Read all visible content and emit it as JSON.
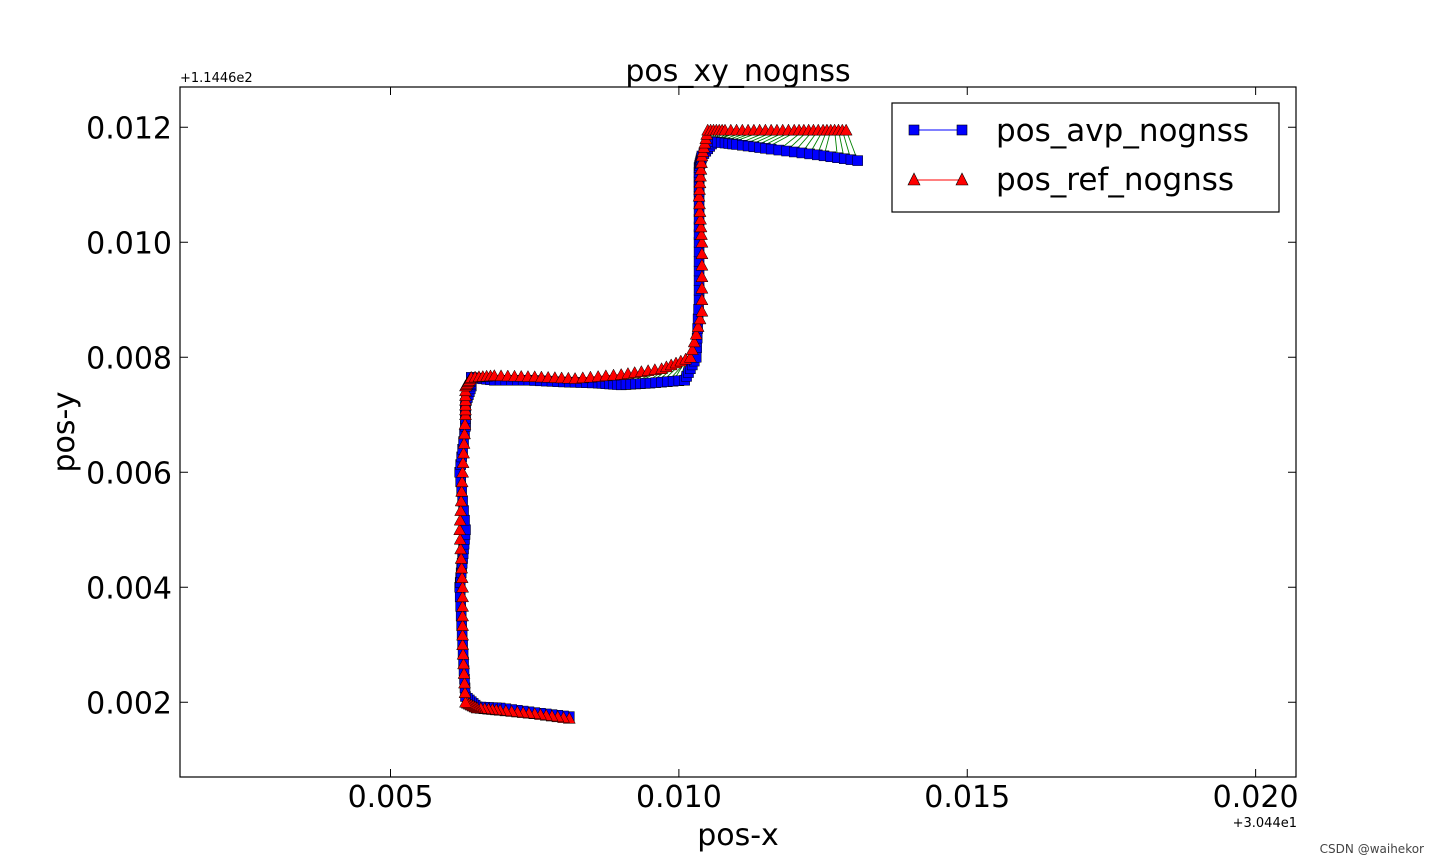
{
  "chart_data": {
    "type": "scatter",
    "title": "pos_xy_nognss",
    "xlabel": "pos-x",
    "ylabel": "pos-y",
    "x_offset_label": "+3.044e1",
    "y_offset_label": "+1.1446e2",
    "xlim": [
      0.00135,
      0.0207
    ],
    "ylim": [
      0.0007,
      0.0127
    ],
    "x_ticks": [
      {
        "value": 0.005,
        "label": "0.005"
      },
      {
        "value": 0.01,
        "label": "0.010"
      },
      {
        "value": 0.015,
        "label": "0.015"
      },
      {
        "value": 0.02,
        "label": "0.020"
      }
    ],
    "y_ticks": [
      {
        "value": 0.002,
        "label": "0.002"
      },
      {
        "value": 0.004,
        "label": "0.004"
      },
      {
        "value": 0.006,
        "label": "0.006"
      },
      {
        "value": 0.008,
        "label": "0.008"
      },
      {
        "value": 0.01,
        "label": "0.010"
      },
      {
        "value": 0.012,
        "label": "0.012"
      }
    ],
    "grid": false,
    "legend_position": "top-right",
    "series": [
      {
        "name": "pos_avp_nognss",
        "color": "#0000ff",
        "marker": "square",
        "x": [
          0.0081,
          0.0075,
          0.0069,
          0.0065,
          0.0063,
          0.00625,
          0.0062,
          0.00625,
          0.0063,
          0.0062,
          0.0063,
          0.0063,
          0.0064,
          0.0064,
          0.0068,
          0.0074,
          0.008,
          0.0086,
          0.009,
          0.0095,
          0.0101,
          0.0103,
          0.01035,
          0.01035,
          0.01035,
          0.01035,
          0.0104,
          0.0106,
          0.011,
          0.0116,
          0.0124,
          0.0131
        ],
        "y": [
          0.00175,
          0.00182,
          0.0019,
          0.00192,
          0.0021,
          0.003,
          0.004,
          0.0045,
          0.005,
          0.006,
          0.0068,
          0.0072,
          0.0075,
          0.00765,
          0.0076,
          0.0076,
          0.00757,
          0.00755,
          0.00752,
          0.00755,
          0.0076,
          0.008,
          0.009,
          0.01,
          0.0108,
          0.0113,
          0.0115,
          0.01175,
          0.0117,
          0.01162,
          0.01152,
          0.01142
        ]
      },
      {
        "name": "pos_ref_nognss",
        "color": "#ff0000",
        "marker": "triangle",
        "x": [
          0.0081,
          0.0075,
          0.0069,
          0.0065,
          0.0063,
          0.00625,
          0.00625,
          0.0062,
          0.00625,
          0.0063,
          0.0063,
          0.0064,
          0.0068,
          0.0075,
          0.0082,
          0.009,
          0.0097,
          0.0102,
          0.0104,
          0.0104,
          0.01035,
          0.0104,
          0.0105,
          0.0108,
          0.0114,
          0.012,
          0.0125,
          0.0129
        ],
        "y": [
          0.00172,
          0.0018,
          0.00186,
          0.0019,
          0.002,
          0.003,
          0.004,
          0.005,
          0.006,
          0.007,
          0.0075,
          0.00765,
          0.00768,
          0.00766,
          0.00763,
          0.0077,
          0.0078,
          0.008,
          0.0088,
          0.01,
          0.0108,
          0.0115,
          0.01195,
          0.01195,
          0.01195,
          0.01195,
          0.01195,
          0.01195
        ]
      }
    ]
  },
  "watermark": "CSDN @waihekor"
}
